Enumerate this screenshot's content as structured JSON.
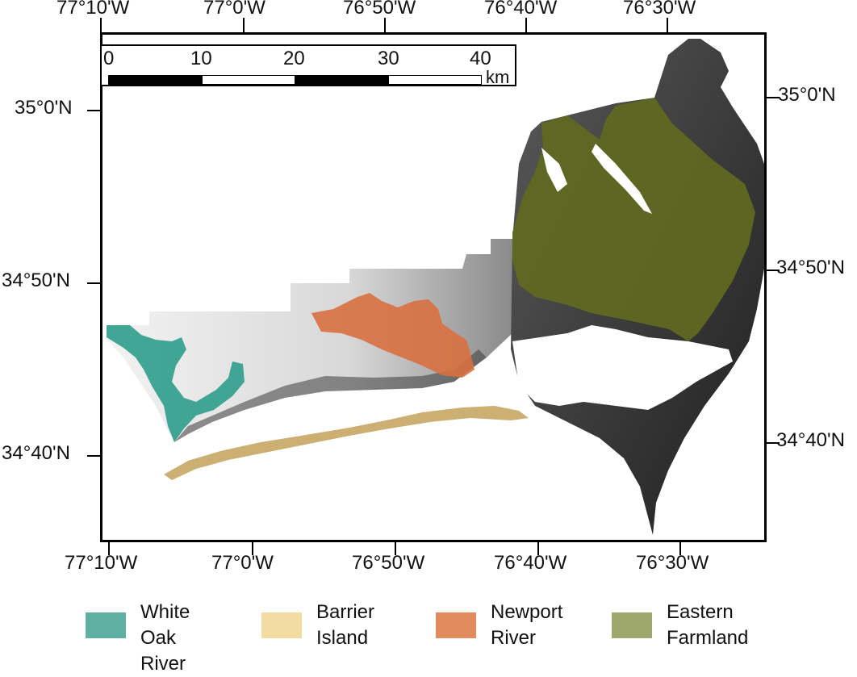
{
  "map": {
    "top_longitudes": [
      "77°10'W",
      "77°0'W",
      "76°50'W",
      "76°40'W",
      "76°30'W"
    ],
    "bottom_longitudes": [
      "77°10'W",
      "77°0'W",
      "76°50'W",
      "76°40'W",
      "76°30'W"
    ],
    "left_latitudes": [
      "35°0'N",
      "34°50'N",
      "34°40'N"
    ],
    "right_latitudes": [
      "35°0'N",
      "34°50'N",
      "34°40'N"
    ]
  },
  "scale_bar": {
    "ticks": [
      "0",
      "10",
      "20",
      "30",
      "40"
    ],
    "unit": "km"
  },
  "legend": [
    {
      "label": "White Oak\nRiver",
      "color": "#5fb0a2"
    },
    {
      "label": "Barrier\nIsland",
      "color": "#f3dca2"
    },
    {
      "label": "Newport\nRiver",
      "color": "#e08a5e"
    },
    {
      "label": "Eastern\nFarmland",
      "color": "#9ea86c"
    }
  ],
  "colors": {
    "white_oak_overlay": "#2f9d8c",
    "barrier_island_overlay": "#c8a867",
    "newport_overlay": "#d8703e",
    "eastern_farmland_overlay": "#5f6a1e"
  }
}
